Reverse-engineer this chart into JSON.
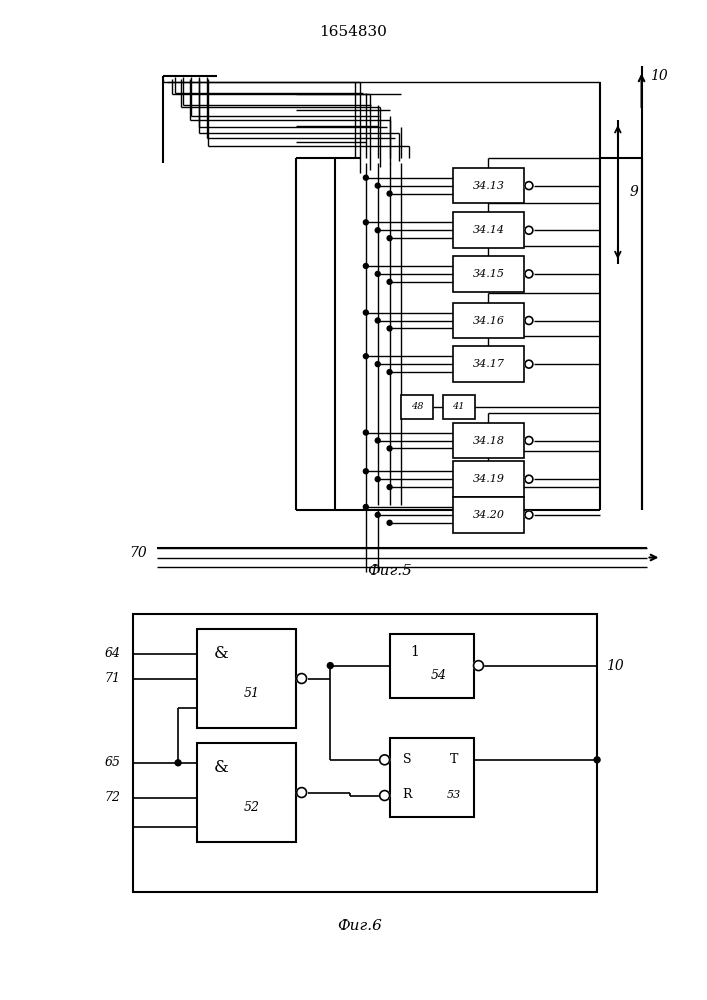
{
  "title": "1654830",
  "fig5_label": "Фиг.5",
  "fig6_label": "Фиг.6",
  "bg_color": "#ffffff"
}
